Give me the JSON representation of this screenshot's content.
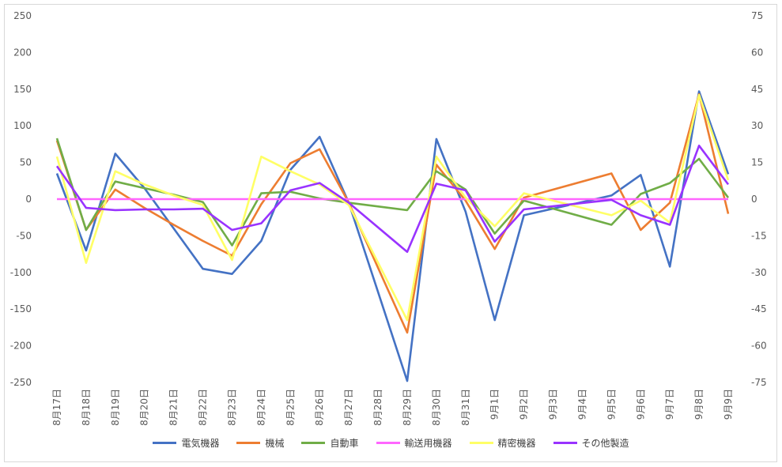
{
  "chart_data": {
    "type": "line",
    "categories": [
      "8月17日",
      "8月18日",
      "8月19日",
      "8月20日",
      "8月21日",
      "8月22日",
      "8月23日",
      "8月24日",
      "8月25日",
      "8月26日",
      "8月27日",
      "8月28日",
      "8月29日",
      "8月30日",
      "8月31日",
      "9月1日",
      "9月2日",
      "9月3日",
      "9月4日",
      "9月5日",
      "9月6日",
      "9月7日",
      "9月8日",
      "9月9日"
    ],
    "left_axis": {
      "min": -250,
      "max": 250,
      "step": 50,
      "ticks": [
        "250",
        "200",
        "150",
        "100",
        "50",
        "0",
        "-50",
        "-100",
        "-150",
        "-200",
        "-250"
      ]
    },
    "right_axis": {
      "min": -75,
      "max": 75,
      "step": 15,
      "ticks": [
        "75",
        "60",
        "45",
        "30",
        "15",
        "0",
        "-15",
        "-30",
        "-45",
        "-60",
        "-75"
      ]
    },
    "grid": false,
    "legend_position": "bottom",
    "series": [
      {
        "name": "電気機器",
        "color": "#4472C4",
        "axis": "left",
        "values": [
          35,
          -70,
          62,
          15,
          -40,
          -95,
          -102,
          -57,
          40,
          85,
          -5,
          null,
          -248,
          82,
          -17,
          -165,
          -22,
          null,
          null,
          5,
          33,
          -92,
          147,
          34
        ]
      },
      {
        "name": "機械",
        "color": "#ED7D31",
        "axis": "left",
        "values": [
          80,
          -42,
          13,
          -12,
          -35,
          -57,
          -77,
          -7,
          49,
          68,
          -5,
          null,
          -182,
          47,
          -2,
          -68,
          2,
          null,
          null,
          35,
          -42,
          -5,
          143,
          -20
        ]
      },
      {
        "name": "自動車",
        "color": "#70AD47",
        "axis": "left",
        "values": [
          83,
          -42,
          24,
          15,
          6,
          -4,
          -63,
          8,
          10,
          1,
          -5,
          null,
          -15,
          38,
          13,
          -47,
          -2,
          null,
          null,
          -35,
          7,
          22,
          55,
          2
        ]
      },
      {
        "name": "輸送用機器",
        "color": "#FF66FF",
        "axis": "left",
        "values": [
          0,
          0,
          0,
          0,
          0,
          0,
          0,
          0,
          0,
          0,
          0,
          0,
          0,
          0,
          0,
          0,
          0,
          0,
          0,
          0,
          0,
          0,
          0,
          0
        ]
      },
      {
        "name": "精密機器",
        "color": "#FFFF66",
        "axis": "left",
        "values": [
          58,
          -87,
          38,
          20,
          5,
          -8,
          -83,
          58,
          38,
          20,
          -8,
          null,
          -165,
          58,
          2,
          -37,
          8,
          null,
          null,
          -22,
          -2,
          -32,
          142,
          26
        ]
      },
      {
        "name": "その他製造",
        "color": "#9933FF",
        "axis": "left",
        "values": [
          45,
          -12,
          -15,
          -14,
          -14,
          -13,
          -42,
          -33,
          12,
          22,
          -5,
          null,
          -72,
          21,
          12,
          -58,
          -14,
          null,
          null,
          -1,
          -22,
          -35,
          73,
          20
        ]
      }
    ]
  }
}
